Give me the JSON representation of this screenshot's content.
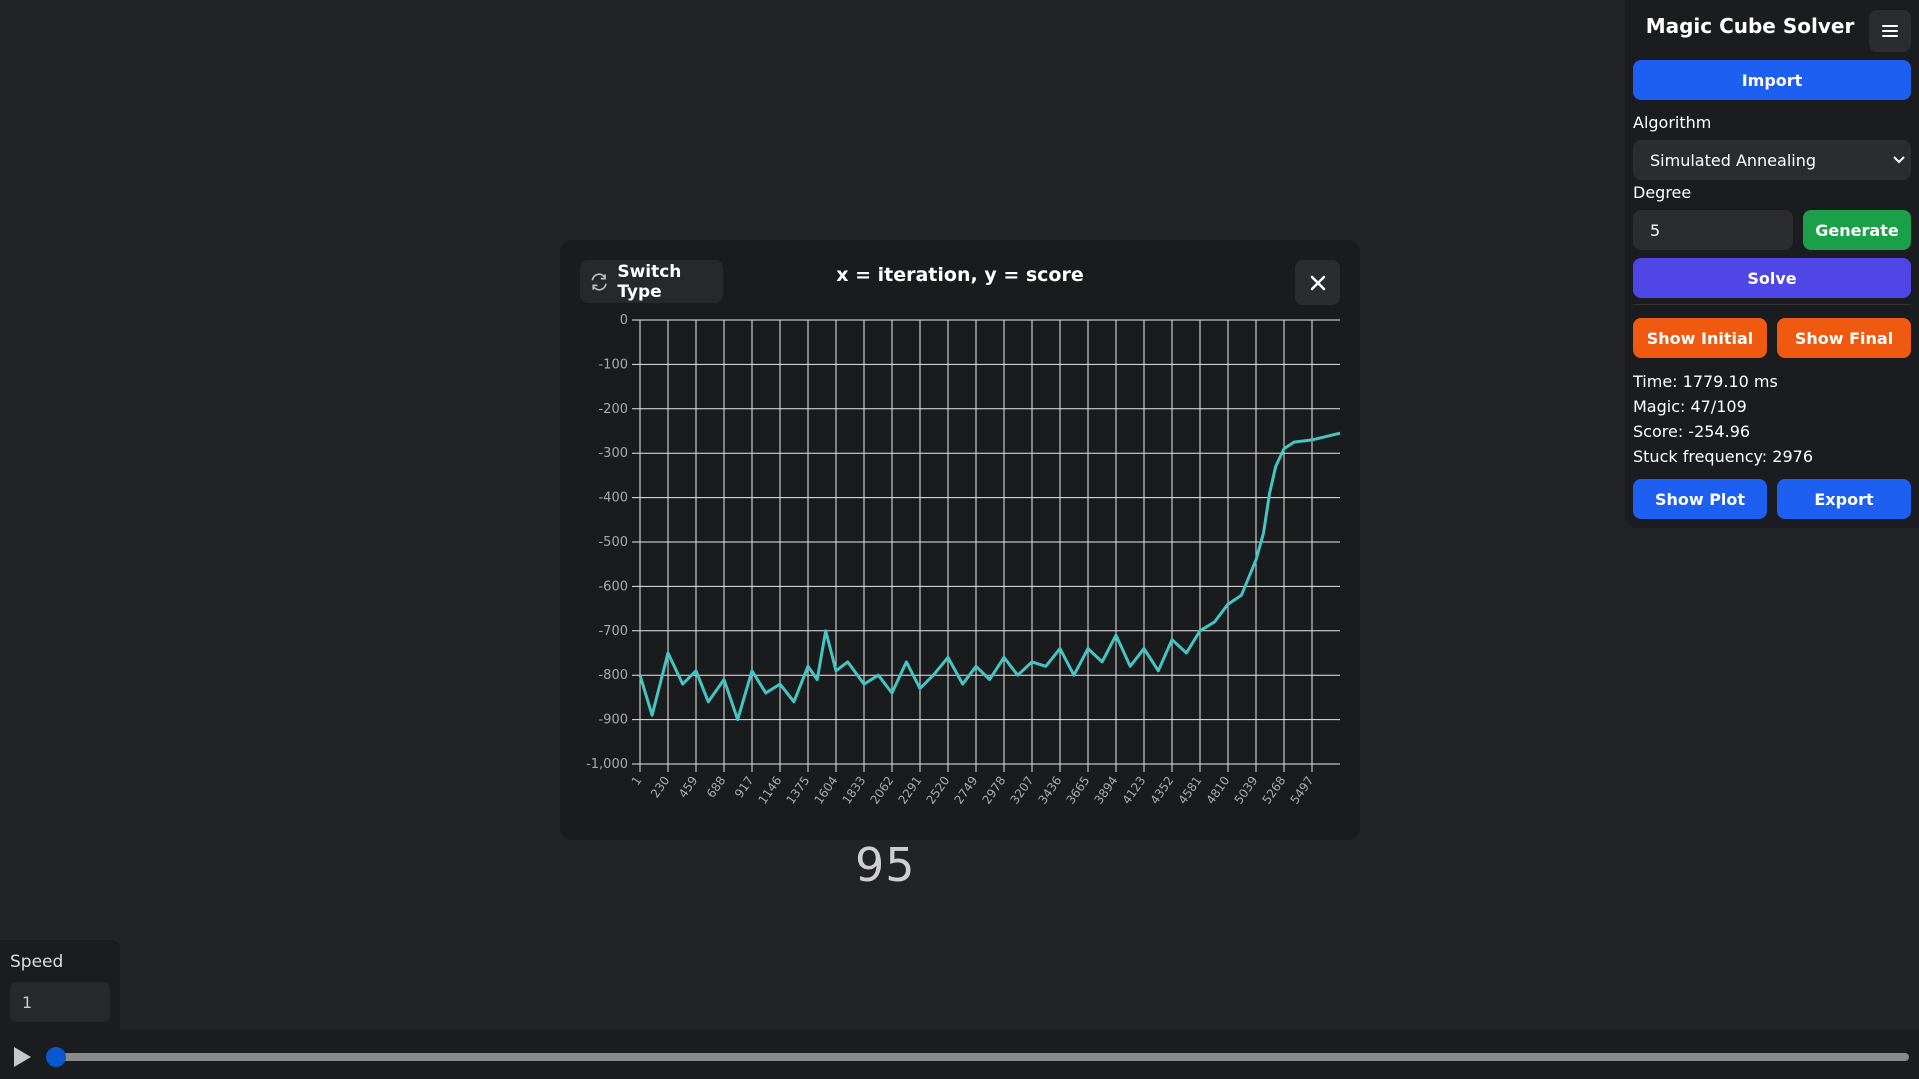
{
  "app": {
    "title": "Magic Cube Solver"
  },
  "sidebar": {
    "import_label": "Import",
    "algorithm_label": "Algorithm",
    "algorithm_value": "Simulated Annealing",
    "degree_label": "Degree",
    "degree_value": "5",
    "generate_label": "Generate",
    "solve_label": "Solve",
    "show_initial_label": "Show Initial",
    "show_final_label": "Show Final",
    "stats": {
      "time": "Time: 1779.10 ms",
      "magic": "Magic: 47/109",
      "score": "Score: -254.96",
      "stuck": "Stuck frequency: 2976"
    },
    "show_plot_label": "Show Plot",
    "export_label": "Export"
  },
  "modal": {
    "switch_type_label": "Switch Type",
    "title": "x = iteration, y = score"
  },
  "overlay_number": "95",
  "speed": {
    "label": "Speed",
    "value": "1"
  },
  "playback": {
    "progress": 0.0
  },
  "colors": {
    "primary_blue": "#1d5ff0",
    "generate_green": "#1ba04a",
    "solve_purple": "#4f46e5",
    "orange": "#ef5a10",
    "line": "#45c4c4"
  },
  "icons": [
    "menu-icon",
    "switch-icon",
    "close-icon",
    "chevron-down-icon",
    "play-icon"
  ],
  "chart_data": {
    "type": "line",
    "title": "x = iteration, y = score",
    "xlabel": "iteration",
    "ylabel": "score",
    "ylim": [
      -1000,
      0
    ],
    "xlim": [
      1,
      5726
    ],
    "grid": true,
    "y_ticks": [
      "0",
      "-100",
      "-200",
      "-300",
      "-400",
      "-500",
      "-600",
      "-700",
      "-800",
      "-900",
      "-1,000"
    ],
    "x_ticks": [
      "1",
      "230",
      "459",
      "688",
      "917",
      "1146",
      "1375",
      "1604",
      "1833",
      "2062",
      "2291",
      "2520",
      "2749",
      "2978",
      "3207",
      "3436",
      "3665",
      "3894",
      "4123",
      "4352",
      "4581",
      "4810",
      "5039",
      "5268",
      "5497"
    ],
    "series": [
      {
        "x": [
          1,
          100,
          230,
          350,
          459,
          560,
          688,
          800,
          917,
          1030,
          1146,
          1260,
          1375,
          1450,
          1520,
          1604,
          1700,
          1833,
          1950,
          2062,
          2180,
          2291,
          2400,
          2520,
          2640,
          2749,
          2860,
          2978,
          3090,
          3207,
          3320,
          3436,
          3550,
          3665,
          3780,
          3894,
          4010,
          4123,
          4240,
          4352,
          4470,
          4581,
          4700,
          4810,
          4920,
          5039,
          5100,
          5150,
          5200,
          5268,
          5350,
          5497,
          5726
        ],
        "y": [
          -800,
          -890,
          -750,
          -820,
          -790,
          -860,
          -810,
          -900,
          -790,
          -840,
          -820,
          -860,
          -780,
          -810,
          -700,
          -790,
          -770,
          -820,
          -800,
          -840,
          -770,
          -830,
          -800,
          -760,
          -820,
          -780,
          -810,
          -760,
          -800,
          -770,
          -780,
          -740,
          -800,
          -740,
          -770,
          -710,
          -780,
          -740,
          -790,
          -720,
          -750,
          -700,
          -680,
          -640,
          -620,
          -540,
          -480,
          -390,
          -330,
          -290,
          -275,
          -270,
          -255
        ]
      }
    ]
  }
}
